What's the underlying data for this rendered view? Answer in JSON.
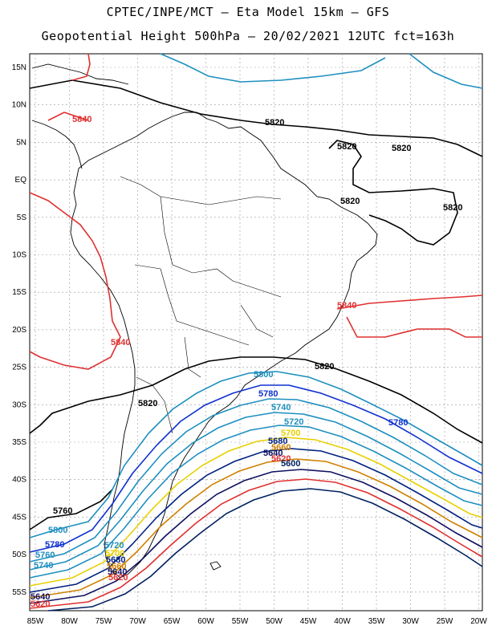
{
  "header": {
    "line1": "CPTEC/INPE/MCT –  Eta Model 15km – GFS",
    "line2": "Geopotential Height 500hPa – 20/02/2021 12UTC fct=163h"
  },
  "axes": {
    "lat_labels": [
      "15N",
      "10N",
      "5N",
      "EQ",
      "5S",
      "10S",
      "15S",
      "20S",
      "25S",
      "30S",
      "35S",
      "40S",
      "45S",
      "50S",
      "55S"
    ],
    "lon_labels": [
      "85W",
      "80W",
      "75W",
      "70W",
      "65W",
      "60W",
      "55W",
      "50W",
      "45W",
      "40W",
      "35W",
      "30W",
      "25W",
      "20W"
    ]
  },
  "contour_labels": [
    {
      "text": "5840",
      "color": "#e03030"
    },
    {
      "text": "5820",
      "color": "#000000"
    },
    {
      "text": "5820",
      "color": "#000000"
    },
    {
      "text": "5820",
      "color": "#000000"
    },
    {
      "text": "5820",
      "color": "#000000"
    },
    {
      "text": "5820",
      "color": "#000000"
    },
    {
      "text": "5840",
      "color": "#e03030"
    },
    {
      "text": "5840",
      "color": "#e03030"
    },
    {
      "text": "5820",
      "color": "#000000"
    },
    {
      "text": "5800",
      "color": "#1e8fbf"
    },
    {
      "text": "5780",
      "color": "#1030d0"
    },
    {
      "text": "5740",
      "color": "#1e8fbf"
    },
    {
      "text": "5720",
      "color": "#1e8fbf"
    },
    {
      "text": "5780",
      "color": "#1030d0"
    },
    {
      "text": "5700",
      "color": "#e8d000"
    },
    {
      "text": "5680",
      "color": "#002080"
    },
    {
      "text": "5660",
      "color": "#d08000"
    },
    {
      "text": "5640",
      "color": "#101060"
    },
    {
      "text": "5620",
      "color": "#e03030"
    },
    {
      "text": "5600",
      "color": "#002060"
    },
    {
      "text": "5820",
      "color": "#000000"
    },
    {
      "text": "5800",
      "color": "#1e8fbf"
    },
    {
      "text": "5780",
      "color": "#1030d0"
    },
    {
      "text": "5760",
      "color": "#1e8fbf"
    },
    {
      "text": "5740",
      "color": "#1e8fbf"
    },
    {
      "text": "5720",
      "color": "#1e8fbf"
    },
    {
      "text": "5700",
      "color": "#e8d000"
    },
    {
      "text": "5680",
      "color": "#002080"
    },
    {
      "text": "5660",
      "color": "#d08000"
    },
    {
      "text": "5640",
      "color": "#101060"
    },
    {
      "text": "5620",
      "color": "#e03030"
    },
    {
      "text": "5640",
      "color": "#101060"
    },
    {
      "text": "5620",
      "color": "#e03030"
    },
    {
      "text": "5760",
      "color": "#1e8fbf"
    }
  ],
  "colors": {
    "c5840": "#e03030",
    "c5820": "#000000",
    "c5800": "#1e8fbf",
    "c5780": "#1030d0",
    "c5700": "#e8d000",
    "c5660": "#d08000",
    "c5600": "#002060",
    "coast": "#000000",
    "grid": "#999999"
  }
}
